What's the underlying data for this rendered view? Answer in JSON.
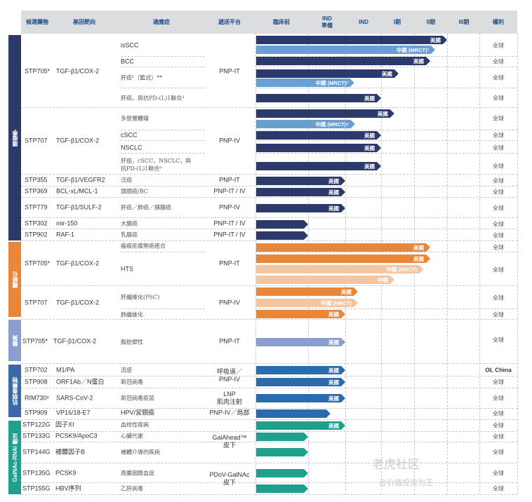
{
  "header": {
    "columns": [
      "候選藥物",
      "基因靶向",
      "適應症",
      "遞送平台",
      "臨床前",
      "IND\n準備",
      "IND",
      "I期",
      "II期",
      "III期",
      "權利"
    ]
  },
  "categories": [
    {
      "label": "腫瘤學",
      "color": "#2b3a6b"
    },
    {
      "label": "纖維化",
      "color": "#e8873a"
    },
    {
      "label": "醫美",
      "color": "#8a9fd0"
    },
    {
      "label": "抗病毒藥物",
      "color": "#3c68a8"
    },
    {
      "label": "GalNAc-RNAi 療法",
      "color": "#1fa08f"
    }
  ],
  "candidates": [
    {
      "id": "STP705*",
      "gene": "TGF-β1/COX-2"
    },
    {
      "id": "STP707",
      "gene": "TGF-β1/COX-2"
    },
    {
      "id": "STP355",
      "gene": "TGF-β1/VEGFR2"
    },
    {
      "id": "STP369",
      "gene": "BCL-xL/MCL-1"
    },
    {
      "id": "STP779",
      "gene": "TGF-β1/SULF-2"
    },
    {
      "id": "STP302",
      "gene": "mir-150"
    },
    {
      "id": "STP902",
      "gene": "RAF-1"
    },
    {
      "id": "STP705*",
      "gene": "TGF-β1/COX-2"
    },
    {
      "id": "STP707",
      "gene": "TGF-β1/COX-2"
    },
    {
      "id": "STP705*",
      "gene": "TGF-β1/COX-2"
    },
    {
      "id": "STP702",
      "gene": "M1/PA"
    },
    {
      "id": "STP908",
      "gene": "ORF1Ab／N蛋白"
    },
    {
      "id": "RIM730ˢ",
      "gene": "SARS-CoV-2"
    },
    {
      "id": "STP909",
      "gene": "VP16/18-E7"
    },
    {
      "id": "STP122G",
      "gene": "因子XI"
    },
    {
      "id": "STP133G",
      "gene": "PCSK9/ApoC3"
    },
    {
      "id": "STP144G",
      "gene": "補體因子B"
    },
    {
      "id": "STP135G",
      "gene": "PCSK9"
    },
    {
      "id": "STP155G",
      "gene": "HBV序列"
    }
  ],
  "indications": [
    "isSCC",
    "BCC",
    "肝癌¹（籃式）**",
    "肝癌，與抗PD-(L)1聯合³",
    "多發實體瘤",
    "cSCC",
    "NSCLC",
    "肝癌，cSCC，NSCLC，與\n抗PD-(L)1聯合⁵",
    "泛癌",
    "頭頸癌/BC",
    "肝癌／肺癌／胰腺癌",
    "大腸癌",
    "乳腺癌",
    "瘢痕疙瘩無疤癒合",
    "HTS",
    "肝纖維化(PSC)",
    "肺纖維化",
    "脂肪塑性",
    "流感",
    "新冠病毒",
    "新冠病毒疫苗",
    "HPV/宮頸癌",
    "血栓性疾病",
    "心臟代謝",
    "補體介導的疾病",
    "高膽固醇血症",
    "乙肝病毒"
  ],
  "platforms": [
    "PNP-IT",
    "PNP-IV",
    "PNP-IT",
    "PNP-IT / IV",
    "PNP-IV",
    "PNP-IT / IV",
    "PNP-IT / IV",
    "PNP-IT",
    "PNP-IV",
    "PNP-IT",
    "呼吸道／\nPNP-IV",
    "LNP\n肌肉注射",
    "PNP-IV／局部",
    "GalAhead™\n皮下",
    "PDoV-GalNAc\n皮下"
  ],
  "rights": [
    "全球",
    "全球",
    "全球",
    "全球",
    "全球",
    "全球",
    "全球",
    "全球",
    "全球",
    "全球",
    "全球",
    "全球",
    "全球",
    "全球",
    "全球",
    "全球",
    "全球",
    "全球",
    "OL China",
    "全球",
    "全球",
    "全球",
    "全球",
    "全球",
    "全球",
    "全球",
    "全球"
  ],
  "tones": {
    "navy": "#2b3a6b",
    "light": "#6a9fd4",
    "orange": "#e8873a",
    "peach": "#f2c6a2",
    "periwinkle": "#8a9fd0",
    "blue": "#2a6aaf",
    "teal": "#1fa08f"
  },
  "bars": [
    {
      "label": "美國",
      "stage": 5.0,
      "tone": "navy"
    },
    {
      "label": "中國 (MRCT)²",
      "stage": 4.64,
      "tone": "light"
    },
    {
      "label": "美國",
      "stage": 4.49,
      "tone": "navy"
    },
    {
      "label": "美國",
      "stage": 3.53,
      "tone": "navy"
    },
    {
      "label": "中國 (MRCT)³",
      "stage": 2.25,
      "tone": "light"
    },
    {
      "label": "美國",
      "stage": 3.0,
      "tone": "navy"
    },
    {
      "label": "美國",
      "stage": 3.4,
      "tone": "navy"
    },
    {
      "label": "中國 (MRCT)⁴",
      "stage": 2.27,
      "tone": "light"
    },
    {
      "label": "美國",
      "stage": 3.0,
      "tone": "navy"
    },
    {
      "label": "美國",
      "stage": 3.0,
      "tone": "navy"
    },
    {
      "label": "美國",
      "stage": 3.0,
      "tone": "navy"
    },
    {
      "label": "美國",
      "stage": 2.0,
      "tone": "navy"
    },
    {
      "label": "美國",
      "stage": 2.0,
      "tone": "navy"
    },
    {
      "label": "美國",
      "stage": 2.0,
      "tone": "navy"
    },
    {
      "label": "",
      "stage": 1.0,
      "tone": "navy"
    },
    {
      "label": "",
      "stage": 1.0,
      "tone": "navy"
    },
    {
      "label": "美國",
      "stage": 4.49,
      "tone": "orange"
    },
    {
      "label": "美國",
      "stage": 4.49,
      "tone": "orange"
    },
    {
      "label": "中國 (MRCT)",
      "stage": 4.28,
      "tone": "peach"
    },
    {
      "label": "中國",
      "stage": 3.4,
      "tone": "peach"
    },
    {
      "label": "美國",
      "stage": 2.35,
      "tone": "orange"
    },
    {
      "label": "中國 (MRCT)",
      "stage": 2.35,
      "tone": "peach"
    },
    {
      "label": "美國",
      "stage": 2.0,
      "tone": "orange"
    },
    {
      "label": "美國",
      "stage": 2.0,
      "tone": "periwinkle"
    },
    {
      "label": "美國",
      "stage": 2.0,
      "tone": "blue"
    },
    {
      "label": "美國",
      "stage": 2.0,
      "tone": "blue"
    },
    {
      "label": "美國",
      "stage": 2.0,
      "tone": "blue"
    },
    {
      "label": "",
      "stage": 1.6,
      "tone": "blue"
    },
    {
      "label": "美國",
      "stage": 2.0,
      "tone": "teal"
    },
    {
      "label": "",
      "stage": 1.0,
      "tone": "teal"
    },
    {
      "label": "",
      "stage": 1.0,
      "tone": "teal"
    },
    {
      "label": "",
      "stage": 1.0,
      "tone": "teal"
    },
    {
      "label": "",
      "stage": 1.0,
      "tone": "teal"
    }
  ],
  "watermark": {
    "logo": "老虎社区",
    "handle": "@价值投资为王"
  }
}
